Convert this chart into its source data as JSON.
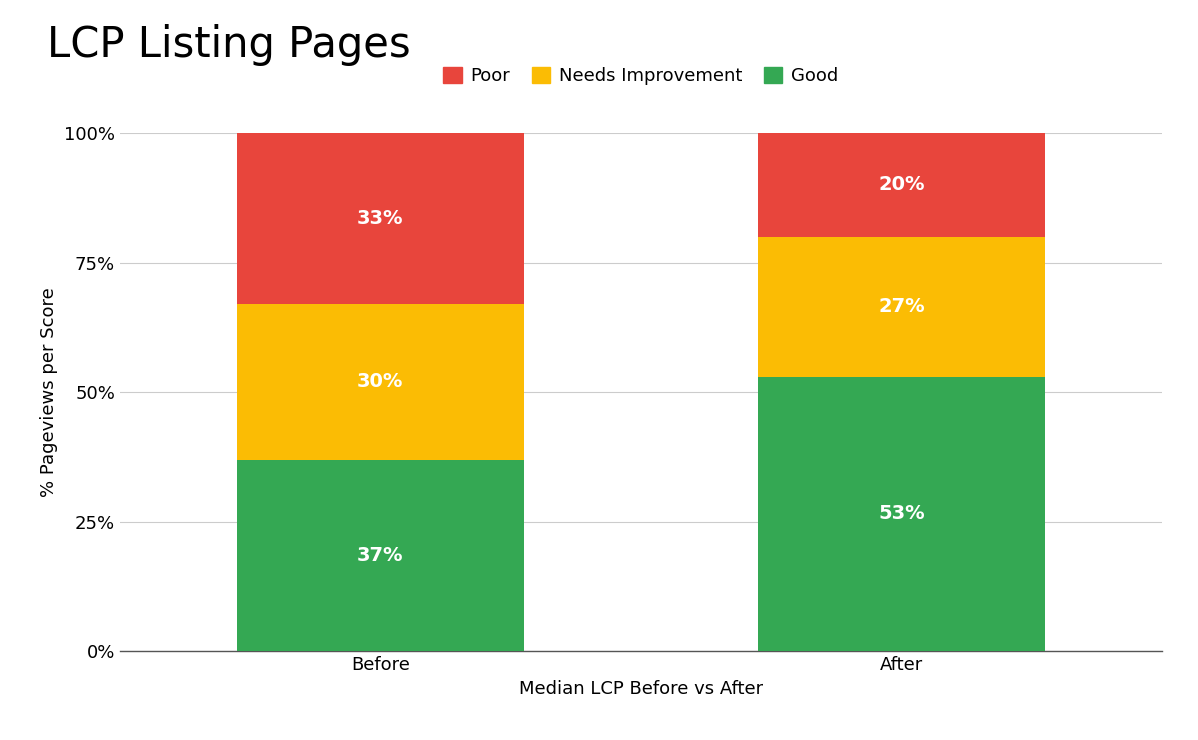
{
  "title": "LCP Listing Pages",
  "xlabel": "Median LCP Before vs After",
  "ylabel": "% Pageviews per Score",
  "categories": [
    "Before",
    "After"
  ],
  "good": [
    37,
    53
  ],
  "needs_improvement": [
    30,
    27
  ],
  "poor": [
    33,
    20
  ],
  "color_good": "#34a853",
  "color_needs_improvement": "#fbbc04",
  "color_poor": "#e8453c",
  "label_good": "Good",
  "label_needs_improvement": "Needs Improvement",
  "label_poor": "Poor",
  "yticks": [
    0,
    25,
    50,
    75,
    100
  ],
  "ytick_labels": [
    "0%",
    "25%",
    "50%",
    "75%",
    "100%"
  ],
  "title_fontsize": 30,
  "axis_label_fontsize": 13,
  "tick_fontsize": 13,
  "legend_fontsize": 13,
  "bar_label_fontsize": 14,
  "bar_width": 0.55,
  "background_color": "#ffffff",
  "grid_color": "#cccccc"
}
